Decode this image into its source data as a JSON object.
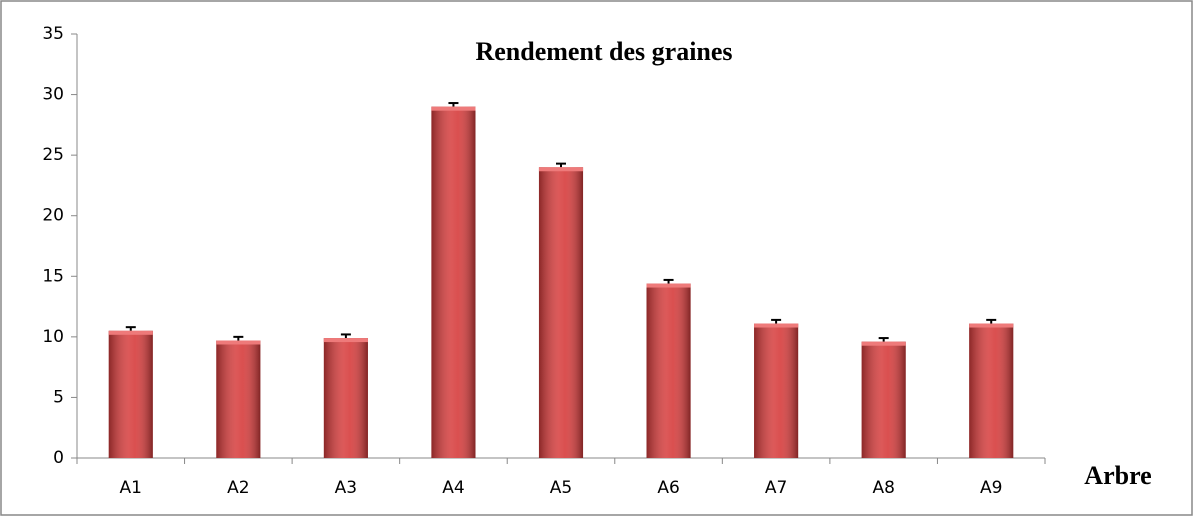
{
  "chart_data": {
    "type": "bar",
    "title": "Rendement des graines",
    "x_label": "Arbre",
    "categories": [
      "A1",
      "A2",
      "A3",
      "A4",
      "A5",
      "A6",
      "A7",
      "A8",
      "A9"
    ],
    "values": [
      10.5,
      9.7,
      9.9,
      29.0,
      24.0,
      14.4,
      11.1,
      9.6,
      11.1
    ],
    "errors": [
      0.3,
      0.3,
      0.3,
      0.3,
      0.3,
      0.3,
      0.3,
      0.3,
      0.3
    ],
    "color": "#d63c3c",
    "ylim": [
      0,
      35
    ],
    "yticks": [
      0,
      5,
      10,
      15,
      20,
      25,
      30,
      35
    ],
    "grid": false
  }
}
